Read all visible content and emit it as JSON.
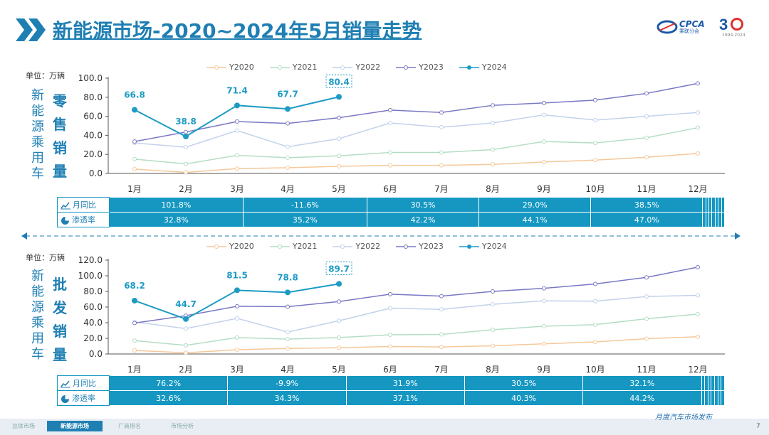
{
  "header": {
    "title": "新能源市场-2020~2024年5月销量走势",
    "logo_text": "CPCA",
    "logo_sub": "乘联分会",
    "anniv_number": "3",
    "anniv_years": "1994-2024"
  },
  "retail": {
    "unit_label": "单位：万辆",
    "side_label": [
      "新",
      "能",
      "源",
      "乘",
      "用",
      "车"
    ],
    "metric_label": [
      "零",
      "售",
      "销",
      "量"
    ],
    "table_rows": [
      {
        "label": "月同比",
        "icon": "line-chart-icon",
        "values": [
          "101.8%",
          "-11.6%",
          "30.5%",
          "29.0%",
          "38.5%",
          "",
          "",
          "",
          "",
          "",
          "",
          ""
        ]
      },
      {
        "label": "渗透率",
        "icon": "pie-chart-icon",
        "values": [
          "32.8%",
          "35.2%",
          "42.2%",
          "44.1%",
          "47.0%",
          "",
          "",
          "",
          "",
          "",
          "",
          ""
        ]
      }
    ]
  },
  "wholesale": {
    "unit_label": "单位：万辆",
    "side_label": [
      "新",
      "能",
      "源",
      "乘",
      "用",
      "车"
    ],
    "metric_label": [
      "批",
      "发",
      "销",
      "量"
    ],
    "table_rows": [
      {
        "label": "月同比",
        "icon": "line-chart-icon",
        "values": [
          "76.2%",
          "-9.9%",
          "31.9%",
          "30.5%",
          "32.1%",
          "",
          "",
          "",
          "",
          "",
          "",
          ""
        ]
      },
      {
        "label": "渗透率",
        "icon": "pie-chart-icon",
        "values": [
          "32.6%",
          "34.3%",
          "37.1%",
          "40.3%",
          "44.2%",
          "",
          "",
          "",
          "",
          "",
          "",
          ""
        ]
      }
    ]
  },
  "chart_data": [
    {
      "type": "line",
      "title": "零售销量",
      "categories": [
        "1月",
        "2月",
        "3月",
        "4月",
        "5月",
        "6月",
        "7月",
        "8月",
        "9月",
        "10月",
        "11月",
        "12月"
      ],
      "ylim": [
        0,
        100
      ],
      "yticks": [
        "0.0",
        "20.0",
        "40.0",
        "60.0",
        "80.0",
        "100.0"
      ],
      "grid": false,
      "legend_position": "top",
      "series": [
        {
          "name": "Y2020",
          "color": "#f5c89a",
          "values": [
            4.5,
            1.1,
            5.0,
            6.0,
            7.5,
            8.5,
            8.5,
            9.5,
            12.0,
            14.0,
            17.0,
            21.0
          ]
        },
        {
          "name": "Y2021",
          "color": "#b5ddc6",
          "values": [
            15.0,
            10.0,
            19.0,
            16.5,
            18.5,
            22.0,
            22.0,
            25.0,
            33.5,
            32.0,
            37.5,
            48.0
          ]
        },
        {
          "name": "Y2022",
          "color": "#c2d2ec",
          "values": [
            32.0,
            27.5,
            45.0,
            28.0,
            36.5,
            53.0,
            48.5,
            53.0,
            61.5,
            56.0,
            60.0,
            64.0
          ]
        },
        {
          "name": "Y2023",
          "color": "#7a78c4",
          "values": [
            33.5,
            43.5,
            54.5,
            52.5,
            58.5,
            66.5,
            64.0,
            71.5,
            74.0,
            77.0,
            84.0,
            94.5
          ]
        },
        {
          "name": "Y2024",
          "color": "#1d9bc4",
          "values": [
            66.8,
            38.8,
            71.4,
            67.7,
            80.4,
            null,
            null,
            null,
            null,
            null,
            null,
            null
          ],
          "labels": [
            "66.8",
            "38.8",
            "71.4",
            "67.7",
            "80.4"
          ],
          "highlight_last": true
        }
      ]
    },
    {
      "type": "line",
      "title": "批发销量",
      "categories": [
        "1月",
        "2月",
        "3月",
        "4月",
        "5月",
        "6月",
        "7月",
        "8月",
        "9月",
        "10月",
        "11月",
        "12月"
      ],
      "ylim": [
        0,
        120
      ],
      "yticks": [
        "0.0",
        "20.0",
        "40.0",
        "60.0",
        "80.0",
        "100.0",
        "120.0"
      ],
      "grid": false,
      "legend_position": "top",
      "series": [
        {
          "name": "Y2020",
          "color": "#f5c89a",
          "values": [
            4.5,
            1.5,
            5.5,
            7.0,
            8.0,
            9.5,
            9.0,
            10.5,
            13.0,
            15.5,
            19.5,
            22.0
          ]
        },
        {
          "name": "Y2021",
          "color": "#b5ddc6",
          "values": [
            17.0,
            11.0,
            21.0,
            19.0,
            21.0,
            24.5,
            25.0,
            31.0,
            35.5,
            37.5,
            45.0,
            51.0
          ]
        },
        {
          "name": "Y2022",
          "color": "#c2d2ec",
          "values": [
            41.0,
            32.5,
            45.5,
            28.0,
            42.5,
            58.5,
            57.0,
            63.5,
            68.0,
            67.5,
            73.5,
            75.0
          ]
        },
        {
          "name": "Y2023",
          "color": "#7a78c4",
          "values": [
            39.5,
            49.0,
            61.0,
            60.5,
            67.0,
            76.5,
            74.0,
            80.0,
            84.0,
            89.5,
            98.0,
            111.0
          ]
        },
        {
          "name": "Y2024",
          "color": "#1d9bc4",
          "values": [
            68.2,
            44.7,
            81.5,
            78.8,
            89.7,
            null,
            null,
            null,
            null,
            null,
            null,
            null
          ],
          "labels": [
            "68.2",
            "44.7",
            "81.5",
            "78.8",
            "89.7"
          ],
          "highlight_last": true
        }
      ]
    }
  ],
  "footer": {
    "tabs": [
      "总体市场",
      "新能源市场",
      "厂商排名",
      "市场分析"
    ],
    "active_tab": 1,
    "signature": "月度汽车市场发布",
    "page": "7"
  }
}
